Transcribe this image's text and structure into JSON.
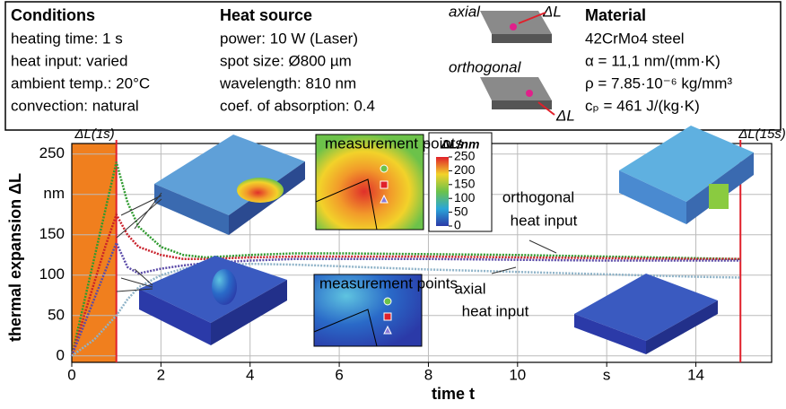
{
  "header": {
    "columns": [
      {
        "title": "Conditions",
        "lines": [
          "heating time: 1 s",
          "heat input: varied",
          "ambient temp.: 20°C",
          "convection: natural"
        ]
      },
      {
        "title": "Heat source",
        "lines": [
          "power: 10 W (Laser)",
          "spot size: Ø800 µm",
          "wavelength: 810 nm",
          "coef. of absorption: 0.4"
        ]
      },
      {
        "title": "Material",
        "lines": [
          "42CrMo4 steel",
          "α = 11,1 nm/(mm·K)",
          "ρ = 7.85·10⁻⁶ kg/mm³",
          "cₚ = 461 J/(kg·K)"
        ]
      }
    ],
    "schematic": {
      "axial": "axial",
      "axial_arrow": "ΔL",
      "orthogonal": "orthogonal",
      "orthogonal_arrow": "ΔL"
    }
  },
  "chart_data": {
    "type": "line",
    "xlabel": "time t",
    "ylabel": "thermal expansion ΔL",
    "x": [
      0,
      0.25,
      0.5,
      0.75,
      1,
      1.25,
      1.5,
      2,
      2.5,
      3,
      4,
      5,
      6,
      8,
      10,
      12,
      14,
      15
    ],
    "series": [
      {
        "color": "#2e9a2e",
        "values": [
          0,
          60,
          120,
          180,
          240,
          190,
          160,
          135,
          125,
          122,
          125,
          127,
          127,
          126,
          125,
          123,
          121,
          120
        ]
      },
      {
        "color": "#c8202a",
        "values": [
          0,
          45,
          90,
          135,
          175,
          150,
          135,
          125,
          120,
          120,
          122,
          123,
          123,
          123,
          122,
          121,
          120,
          120
        ]
      },
      {
        "color": "#5a4aa8",
        "values": [
          0,
          35,
          70,
          105,
          140,
          110,
          102,
          108,
          112,
          115,
          118,
          120,
          120,
          120,
          119,
          118,
          118,
          118
        ]
      },
      {
        "color": "#8fb3c8",
        "values": [
          0,
          10,
          20,
          35,
          50,
          70,
          85,
          100,
          108,
          112,
          114,
          113,
          111,
          107,
          104,
          101,
          98,
          97
        ]
      }
    ],
    "xlim": [
      0,
      15.7
    ],
    "ylim": [
      -8,
      263
    ],
    "xticks": [
      0,
      2,
      4,
      6,
      8,
      10,
      {
        "value": 12,
        "label": "s"
      },
      14
    ],
    "yticks": [
      0,
      50,
      100,
      150,
      {
        "value": 200,
        "label": "nm"
      },
      250
    ],
    "grid": true,
    "highlight_x": [
      0,
      1
    ],
    "highlight_color": "#f07f1e",
    "markers": [
      {
        "x": 1,
        "label": "ΔL(1s)"
      },
      {
        "x": 15,
        "label": "ΔL(15s)"
      }
    ],
    "marker_color": "#e0202a",
    "annotations": [
      "orthogonal",
      "heat input",
      "axial",
      "heat input",
      "measurement points",
      "measurement points"
    ],
    "colorbar": {
      "title": "ΔL/nm",
      "ticks": [
        0,
        50,
        100,
        150,
        200,
        250
      ]
    }
  }
}
